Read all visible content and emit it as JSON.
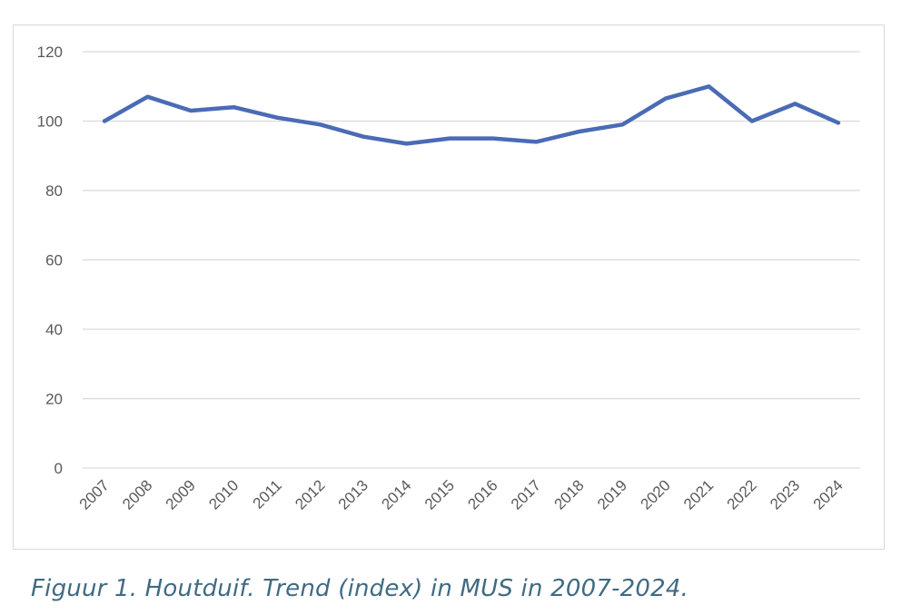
{
  "chart_data": {
    "type": "line",
    "title": "",
    "xlabel": "",
    "ylabel": "",
    "categories": [
      "2007",
      "2008",
      "2009",
      "2010",
      "2011",
      "2012",
      "2013",
      "2014",
      "2015",
      "2016",
      "2017",
      "2018",
      "2019",
      "2020",
      "2021",
      "2022",
      "2023",
      "2024"
    ],
    "series": [
      {
        "values": [
          100,
          107,
          103,
          104,
          101,
          99,
          95.5,
          93.5,
          95,
          95,
          94,
          97,
          99,
          106.5,
          110,
          100,
          105,
          99.5
        ]
      }
    ],
    "ylim": [
      0,
      120
    ],
    "yticks": [
      "0",
      "20",
      "40",
      "60",
      "80",
      "100",
      "120"
    ],
    "grid": true,
    "legend": "none",
    "line_color": "#4a6bb5",
    "grid_color": "#d9d9d9"
  },
  "caption": "Figuur 1. Houtduif. Trend (index) in MUS in 2007-2024."
}
